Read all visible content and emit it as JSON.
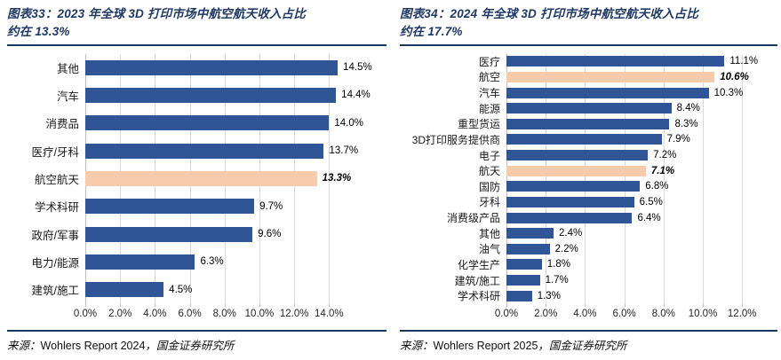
{
  "colors": {
    "bar": "#2F5597",
    "highlight_bar": "#F8CBAD",
    "title_text": "#1F3864",
    "rule": "#17375E",
    "gridline": "#D9D9D9"
  },
  "chart_data": [
    {
      "type": "bar",
      "orientation": "horizontal",
      "figure_label": "图表33",
      "title_line1": "图表33：2023 年全球 3D 打印市场中航空航天收入占比",
      "title_line2": "约在 13.3%",
      "categories": [
        "其他",
        "汽车",
        "消费品",
        "医疗/牙科",
        "航空航天",
        "学术科研",
        "政府/军事",
        "电力/能源",
        "建筑/施工"
      ],
      "values": [
        14.5,
        14.4,
        14.0,
        13.7,
        13.3,
        9.7,
        9.6,
        6.3,
        4.5
      ],
      "value_labels": [
        "14.5%",
        "14.4%",
        "14.0%",
        "13.7%",
        "13.3%",
        "9.7%",
        "9.6%",
        "6.3%",
        "4.5%"
      ],
      "highlight_indices": [
        4
      ],
      "highlight_category": "航空航天",
      "xlim": [
        0,
        14
      ],
      "tick_values": [
        0,
        2,
        4,
        6,
        8,
        10,
        12,
        14
      ],
      "tick_labels": [
        "0.0%",
        "2.0%",
        "4.0%",
        "6.0%",
        "8.0%",
        "10.0%",
        "12.0%",
        "14.0%"
      ],
      "grid": true,
      "legend": "none",
      "source_label": "来源：",
      "source_report": "Wohlers Report 2024",
      "source_org": "，国金证券研究所"
    },
    {
      "type": "bar",
      "orientation": "horizontal",
      "figure_label": "图表34",
      "title_line1": "图表34：2024 年全球 3D 打印市场中航空航天收入占比",
      "title_line2": "约在 17.7%",
      "categories": [
        "医疗",
        "航空",
        "汽车",
        "能源",
        "重型货运",
        "3D打印服务提供商",
        "电子",
        "航天",
        "国防",
        "牙科",
        "消费级产品",
        "其他",
        "油气",
        "化学生产",
        "建筑/施工",
        "学术科研"
      ],
      "values": [
        11.1,
        10.6,
        10.3,
        8.4,
        8.3,
        7.9,
        7.2,
        7.1,
        6.8,
        6.5,
        6.4,
        2.4,
        2.2,
        1.8,
        1.7,
        1.3
      ],
      "value_labels": [
        "11.1%",
        "10.6%",
        "10.3%",
        "8.4%",
        "8.3%",
        "7.9%",
        "7.2%",
        "7.1%",
        "6.8%",
        "6.5%",
        "6.4%",
        "2.4%",
        "2.2%",
        "1.8%",
        "1.7%",
        "1.3%"
      ],
      "highlight_indices": [
        1,
        7
      ],
      "highlight_category": "航空 / 航天",
      "xlim": [
        0,
        12
      ],
      "tick_values": [
        0,
        2,
        4,
        6,
        8,
        10,
        12
      ],
      "tick_labels": [
        "0.0%",
        "2.0%",
        "4.0%",
        "6.0%",
        "8.0%",
        "10.0%",
        "12.0%"
      ],
      "grid": true,
      "legend": "none",
      "source_label": "来源：",
      "source_report": "Wohlers Report 2025",
      "source_org": "，国金证券研究所"
    }
  ]
}
